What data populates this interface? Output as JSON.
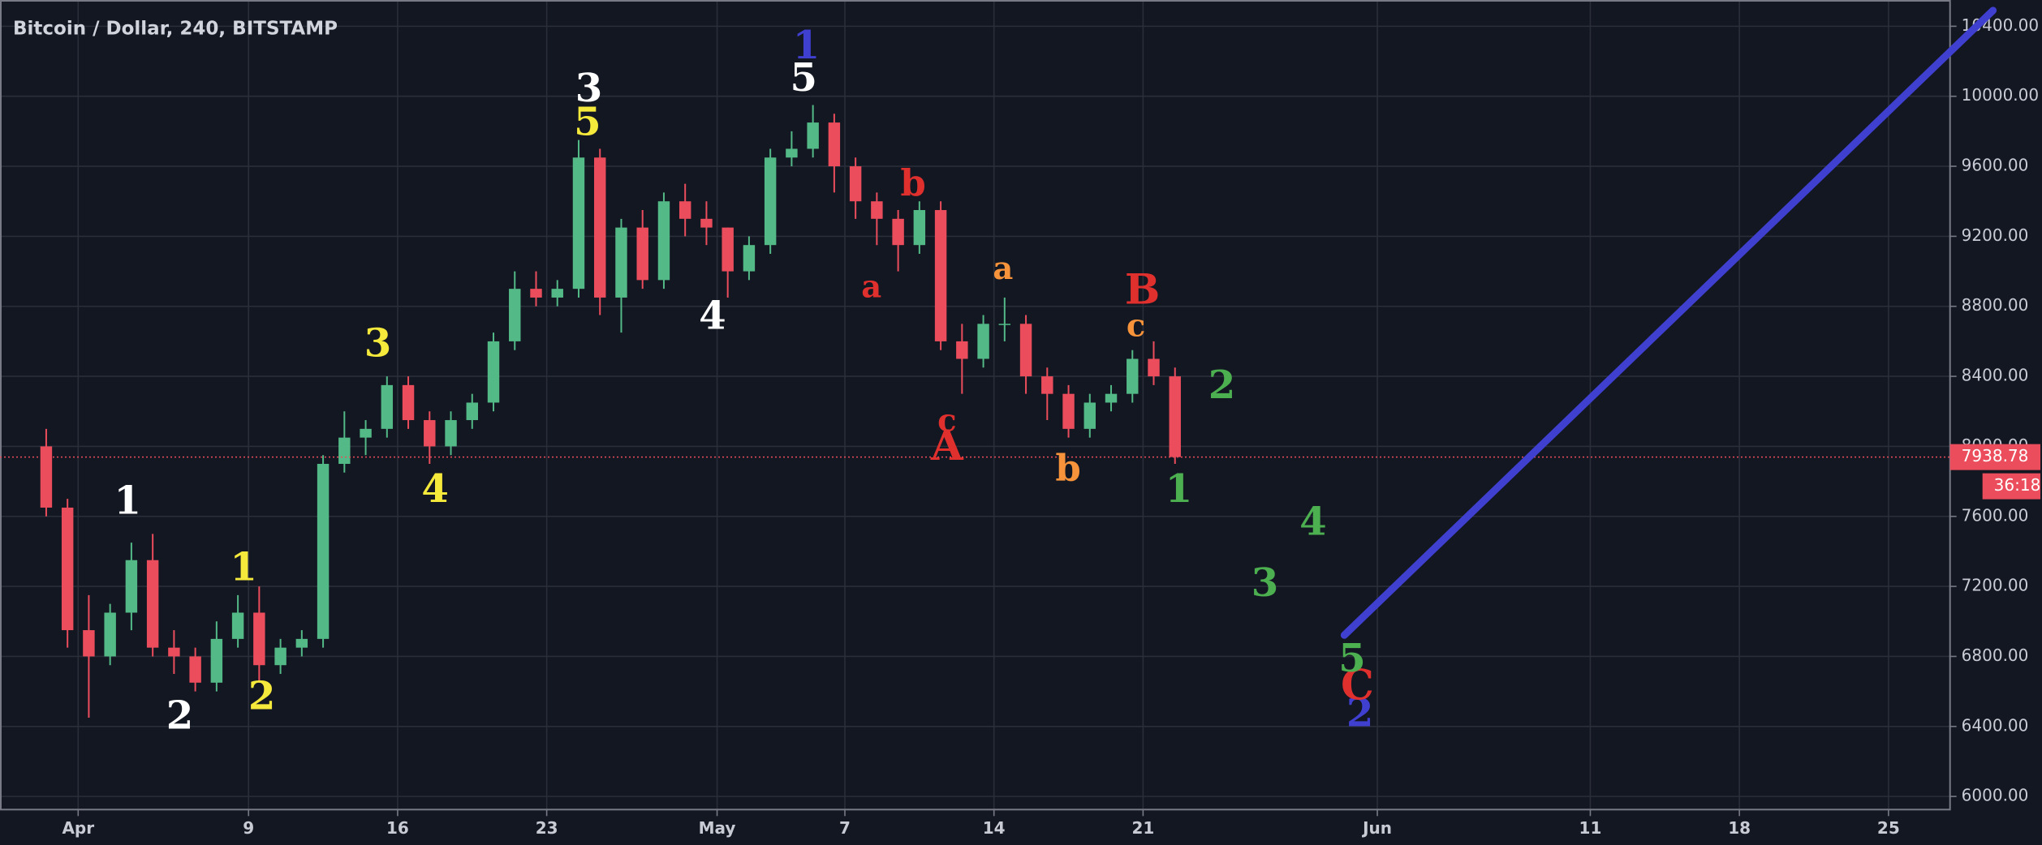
{
  "chart_data": {
    "type": "candlestick",
    "title": "Bitcoin / Dollar, 240, BITSTAMP",
    "x": [
      "Mar 30",
      "Mar 31",
      "Apr 1",
      "Apr 2",
      "Apr 3",
      "Apr 4",
      "Apr 5",
      "Apr 6",
      "Apr 7",
      "Apr 8",
      "Apr 9",
      "Apr 10",
      "Apr 11",
      "Apr 12",
      "Apr 13",
      "Apr 14",
      "Apr 15",
      "Apr 16",
      "Apr 17",
      "Apr 18",
      "Apr 19",
      "Apr 20",
      "Apr 21",
      "Apr 22",
      "Apr 23",
      "Apr 24",
      "Apr 25",
      "Apr 26",
      "Apr 27",
      "Apr 28",
      "Apr 29",
      "Apr 30",
      "May 1",
      "May 2",
      "May 3",
      "May 4",
      "May 5",
      "May 6",
      "May 7",
      "May 8",
      "May 9",
      "May 10",
      "May 11",
      "May 12",
      "May 13",
      "May 14",
      "May 15",
      "May 16",
      "May 17",
      "May 18",
      "May 19",
      "May 20",
      "May 21",
      "May 22"
    ],
    "open": [
      8000,
      7650,
      6950,
      6800,
      7050,
      7350,
      6850,
      6800,
      6650,
      6900,
      7050,
      6750,
      6850,
      6900,
      7900,
      8050,
      8100,
      8350,
      8150,
      8000,
      8150,
      8250,
      8600,
      8900,
      8850,
      8900,
      9650,
      8850,
      9250,
      8950,
      9400,
      9300,
      9250,
      9000,
      9150,
      9650,
      9700,
      9850,
      9600,
      9400,
      9300,
      9150,
      9350,
      8600,
      8500,
      8700,
      8700,
      8400,
      8300,
      8100,
      8250,
      8300,
      8500,
      8400
    ],
    "high": [
      8100,
      7700,
      7150,
      7100,
      7450,
      7500,
      6950,
      6850,
      7000,
      7150,
      7200,
      6900,
      6950,
      7950,
      8200,
      8150,
      8400,
      8400,
      8200,
      8200,
      8300,
      8650,
      9000,
      9000,
      8950,
      9750,
      9700,
      9300,
      9350,
      9450,
      9500,
      9400,
      9250,
      9200,
      9700,
      9800,
      9950,
      9900,
      9650,
      9450,
      9350,
      9400,
      9400,
      8700,
      8750,
      8850,
      8750,
      8450,
      8350,
      8300,
      8350,
      8550,
      8600,
      8450
    ],
    "low": [
      7600,
      6850,
      6450,
      6750,
      6950,
      6800,
      6700,
      6600,
      6600,
      6850,
      6650,
      6700,
      6800,
      6850,
      7850,
      7950,
      8050,
      8100,
      7900,
      7950,
      8100,
      8200,
      8550,
      8800,
      8800,
      8850,
      8750,
      8650,
      8900,
      8900,
      9200,
      9150,
      8850,
      8950,
      9100,
      9600,
      9650,
      9450,
      9300,
      9150,
      9000,
      9100,
      8550,
      8300,
      8450,
      8600,
      8300,
      8150,
      8050,
      8050,
      8200,
      8250,
      8350,
      7900
    ],
    "close": [
      7650,
      6950,
      6800,
      7050,
      7350,
      6850,
      6800,
      6650,
      6900,
      7050,
      6750,
      6850,
      6900,
      7900,
      8050,
      8100,
      8350,
      8150,
      8000,
      8150,
      8250,
      8600,
      8900,
      8850,
      8900,
      9650,
      8850,
      9250,
      8950,
      9400,
      9300,
      9250,
      9000,
      9150,
      9650,
      9700,
      9850,
      9600,
      9400,
      9300,
      9150,
      9350,
      8600,
      8500,
      8700,
      8700,
      8400,
      8300,
      8100,
      8250,
      8300,
      8500,
      8400,
      7938.78
    ],
    "up_color": "#53b987",
    "down_color": "#eb4d5c",
    "ylim": [
      5925,
      10550
    ],
    "yticks": [
      {
        "value": 6000,
        "label": "6000.00"
      },
      {
        "value": 6400,
        "label": "6400.00"
      },
      {
        "value": 6800,
        "label": "6800.00"
      },
      {
        "value": 7200,
        "label": "7200.00"
      },
      {
        "value": 7600,
        "label": "7600.00"
      },
      {
        "value": 8000,
        "label": "8000.00"
      },
      {
        "value": 8400,
        "label": "8400.00"
      },
      {
        "value": 8800,
        "label": "8800.00"
      },
      {
        "value": 9200,
        "label": "9200.00"
      },
      {
        "value": 9600,
        "label": "9600.00"
      },
      {
        "value": 10000,
        "label": "10000.00"
      },
      {
        "value": 10400,
        "label": "10400.00"
      }
    ],
    "xticks": [
      {
        "value": "Apr 1",
        "label": "Apr"
      },
      {
        "value": "Apr 9",
        "label": "9"
      },
      {
        "value": "Apr 16",
        "label": "16"
      },
      {
        "value": "Apr 23",
        "label": "23"
      },
      {
        "value": "May 1",
        "label": "May"
      },
      {
        "value": "May 7",
        "label": "7"
      },
      {
        "value": "May 14",
        "label": "14"
      },
      {
        "value": "May 21",
        "label": "21"
      },
      {
        "value": "Jun 1",
        "label": "Jun"
      },
      {
        "value": "Jun 11",
        "label": "11"
      },
      {
        "value": "Jun 18",
        "label": "18"
      },
      {
        "value": "Jun 25",
        "label": "25"
      }
    ],
    "grid": true,
    "last_price": 7938.78,
    "countdown": "36:18",
    "annotations": [
      {
        "text": "1",
        "color": "#ffffff"
      },
      {
        "text": "2",
        "color": "#ffffff"
      },
      {
        "text": "3",
        "color": "#ffffff"
      },
      {
        "text": "4",
        "color": "#ffffff"
      },
      {
        "text": "5",
        "color": "#ffffff"
      },
      {
        "text": "1",
        "color": "#f5e93b"
      },
      {
        "text": "2",
        "color": "#f5e93b"
      },
      {
        "text": "3",
        "color": "#f5e93b"
      },
      {
        "text": "4",
        "color": "#f5e93b"
      },
      {
        "text": "5",
        "color": "#f5e93b"
      },
      {
        "text": "1",
        "color": "#3f3fd0"
      },
      {
        "text": "2",
        "color": "#3f3fd0"
      },
      {
        "text": "a",
        "color": "#e0302e"
      },
      {
        "text": "b",
        "color": "#e0302e"
      },
      {
        "text": "c",
        "color": "#e0302e"
      },
      {
        "text": "A",
        "color": "#e0302e"
      },
      {
        "text": "B",
        "color": "#e0302e"
      },
      {
        "text": "C",
        "color": "#e0302e"
      },
      {
        "text": "a",
        "color": "#f7933a"
      },
      {
        "text": "b",
        "color": "#f7933a"
      },
      {
        "text": "c",
        "color": "#f7933a"
      },
      {
        "text": "1",
        "color": "#4caf50"
      },
      {
        "text": "2",
        "color": "#4caf50"
      },
      {
        "text": "3",
        "color": "#4caf50"
      },
      {
        "text": "4",
        "color": "#4caf50"
      },
      {
        "text": "5",
        "color": "#4caf50"
      }
    ]
  }
}
